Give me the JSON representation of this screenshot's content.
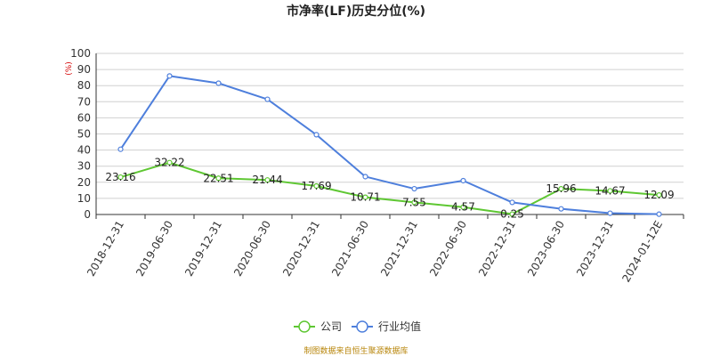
{
  "chart_data": {
    "type": "line",
    "title": "市净率(LF)历史分位(%)",
    "ylabel": "(%)",
    "xlabel": "",
    "ylim": [
      0,
      100
    ],
    "yticks": [
      0,
      10,
      20,
      30,
      40,
      50,
      60,
      70,
      80,
      90,
      100
    ],
    "categories": [
      "2018-12-31",
      "2019-06-30",
      "2019-12-31",
      "2020-06-30",
      "2020-12-31",
      "2021-06-30",
      "2021-12-31",
      "2022-06-30",
      "2022-12-31",
      "2023-06-30",
      "2023-12-31",
      "2024-01-12E"
    ],
    "series": [
      {
        "name": "公司",
        "color": "#5ec732",
        "values": [
          23.16,
          32.22,
          22.51,
          21.44,
          17.69,
          10.71,
          7.55,
          4.57,
          0.25,
          15.96,
          14.67,
          12.09
        ],
        "labels": [
          "23.16",
          "32.22",
          "22.51",
          "21.44",
          "17.69",
          "10.71",
          "7.55",
          "4.57",
          "0.25",
          "15.96",
          "14.67",
          "12.09"
        ]
      },
      {
        "name": "行业均值",
        "color": "#4e7fdc",
        "values": [
          40.5,
          86,
          81.5,
          71.5,
          49.5,
          23.5,
          16,
          21,
          7.5,
          3.5,
          0.8,
          0.2
        ]
      }
    ],
    "grid": true,
    "legend_position": "bottom"
  },
  "source_note": "制图数据来自恒生聚源数据库"
}
